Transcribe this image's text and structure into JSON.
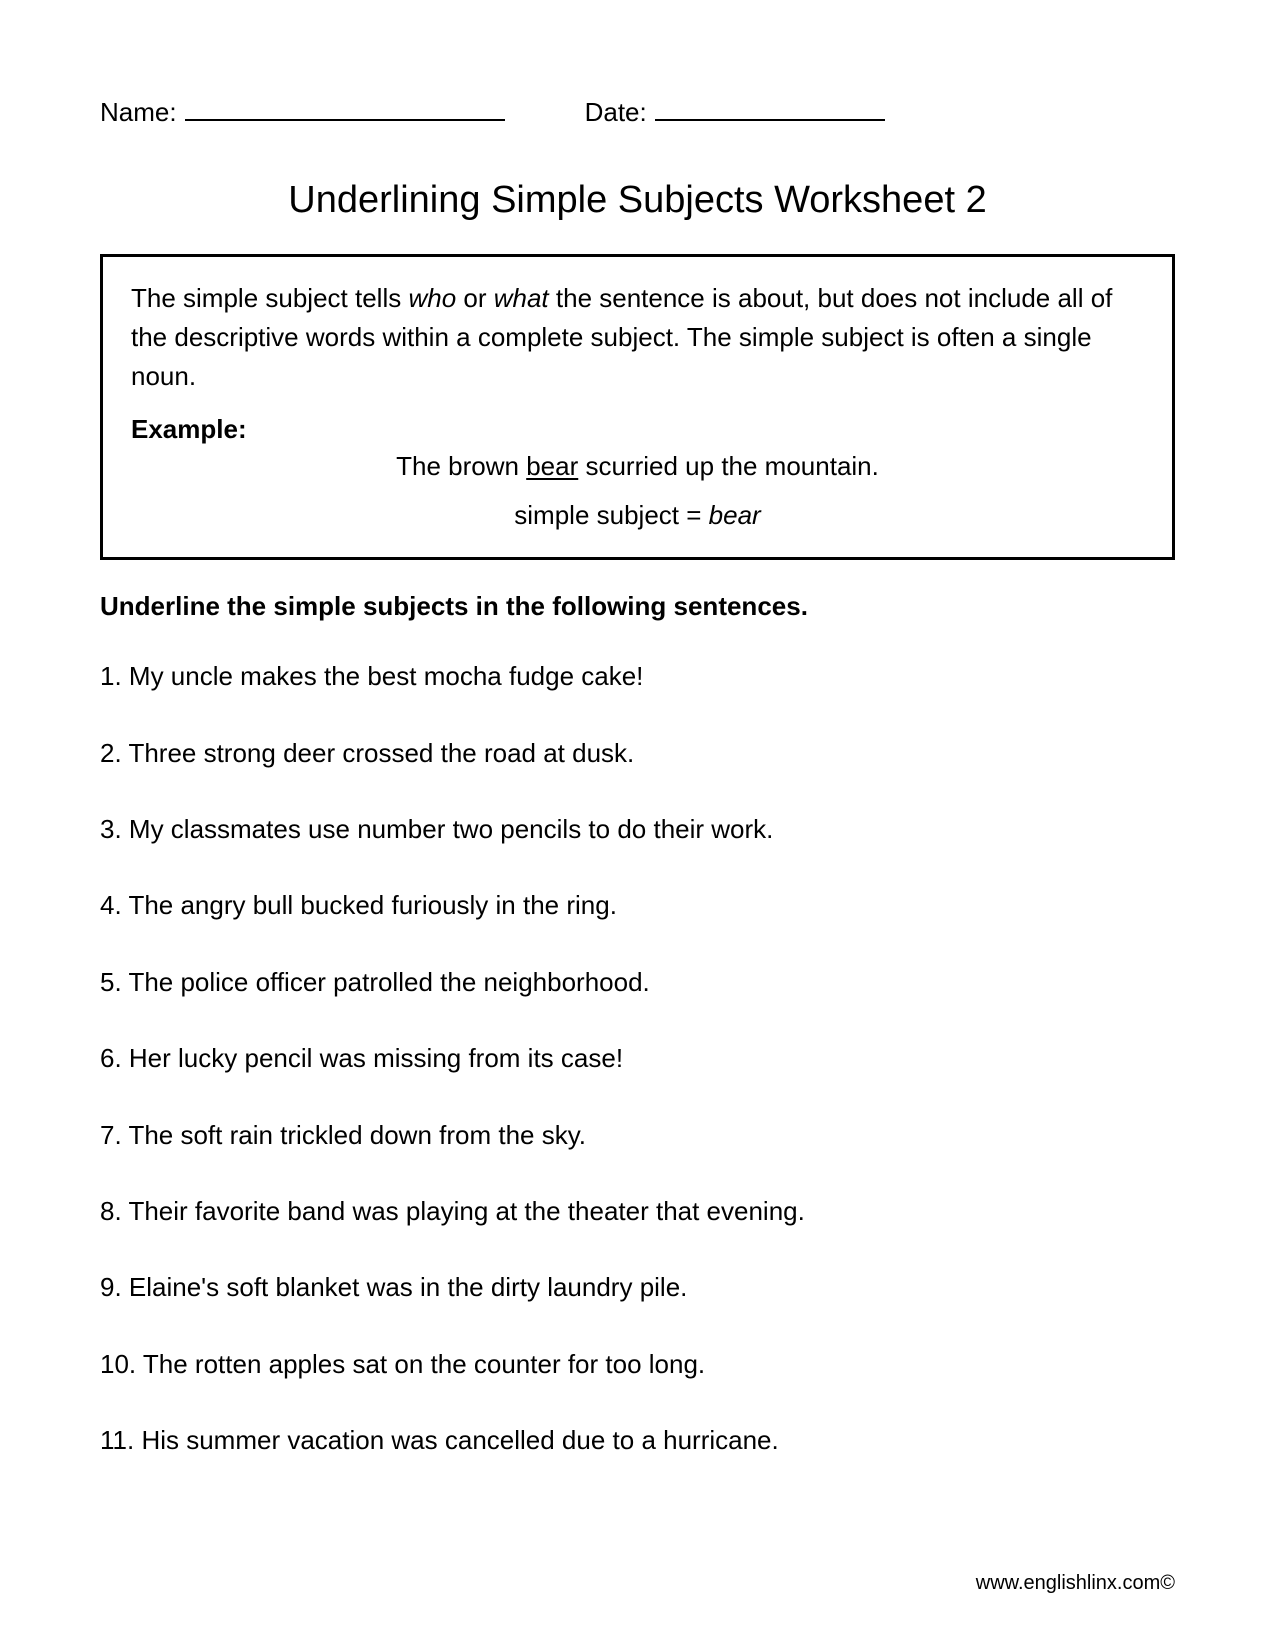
{
  "header": {
    "name_label": "Name:",
    "date_label": "Date:"
  },
  "title": "Underlining Simple Subjects Worksheet 2",
  "explain": {
    "pre1": "The simple subject tells ",
    "em1": "who",
    "mid1": " or ",
    "em2": "what",
    "post1": " the sentence is about, but does not include all of the descriptive words within a complete subject. The simple subject is often a single noun.",
    "example_label": "Example:",
    "example_pre": "The brown ",
    "example_under": "bear",
    "example_post": " scurried up the mountain.",
    "eq_pre": "simple subject = ",
    "eq_em": "bear"
  },
  "instructions": "Underline the simple subjects in the following sentences.",
  "questions": [
    "1. My uncle makes the best mocha fudge cake!",
    "2. Three strong deer crossed the road at dusk.",
    "3. My classmates use number two pencils to do their work.",
    "4. The angry bull bucked furiously in the ring.",
    "5. The police officer patrolled the neighborhood.",
    "6. Her lucky pencil was missing from its case!",
    "7. The soft rain trickled down from the sky.",
    "8. Their favorite band was playing at the theater that evening.",
    "9. Elaine's soft blanket was in the dirty laundry pile.",
    "10. The rotten apples sat on the counter for too long.",
    "11. His summer vacation was cancelled due to a hurricane."
  ],
  "footer": "www.englishlinx.com©"
}
